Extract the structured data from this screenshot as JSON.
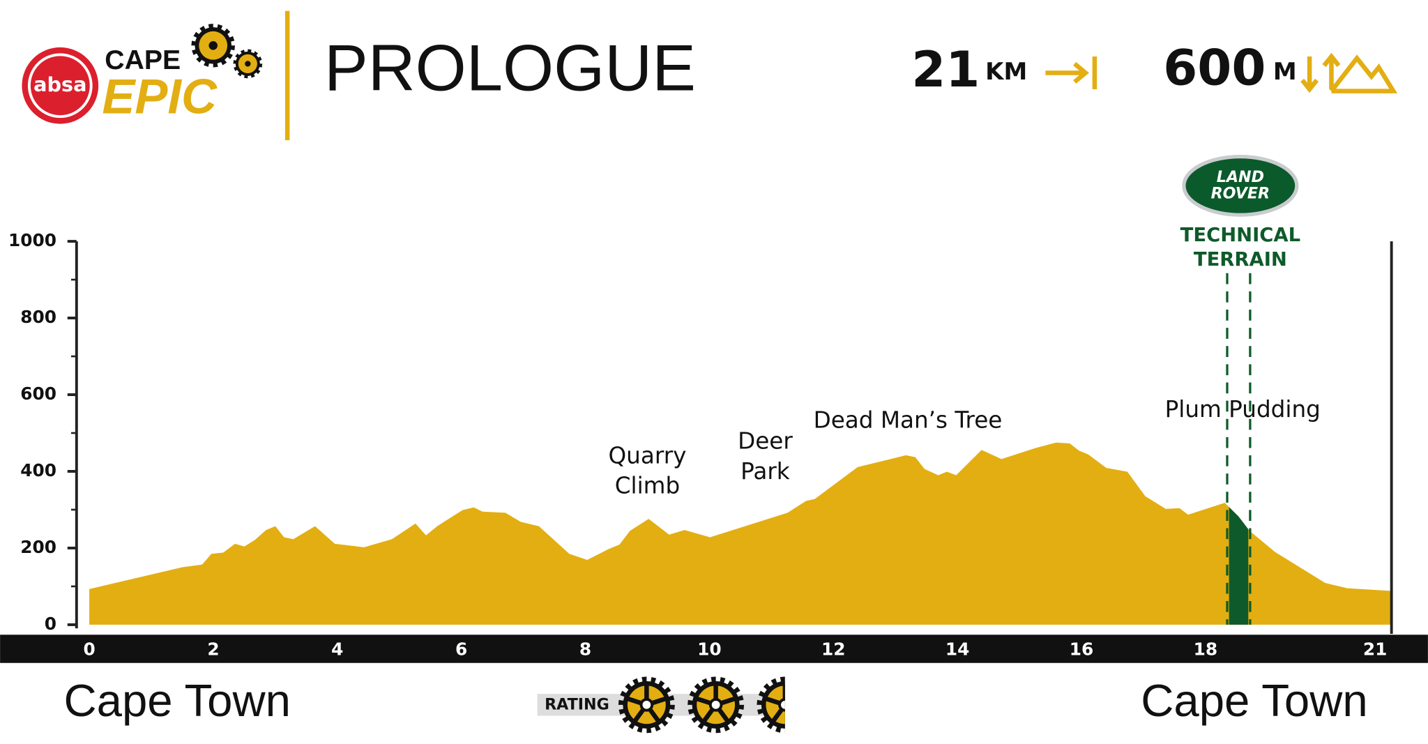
{
  "chart_data": {
    "type": "area",
    "title": "PROLOGUE",
    "brand": {
      "sponsor": "absa",
      "line1": "CAPE",
      "line2": "EPIC"
    },
    "distance": {
      "value": 21,
      "unit": "KM"
    },
    "climbing": {
      "value": 600,
      "unit": "M"
    },
    "start": "Cape Town",
    "finish": "Cape Town",
    "rating": {
      "label": "RATING",
      "value": 2.5
    },
    "x": [
      0,
      1.5,
      1.82,
      1.97,
      2.16,
      2.35,
      2.5,
      2.67,
      2.85,
      3.0,
      3.14,
      3.29,
      3.64,
      3.96,
      4.43,
      4.88,
      5.26,
      5.43,
      5.61,
      6.02,
      6.2,
      6.34,
      6.71,
      6.96,
      7.25,
      7.74,
      8.03,
      8.37,
      8.55,
      8.72,
      9.02,
      9.35,
      9.6,
      10.01,
      11.26,
      11.56,
      11.7,
      12.39,
      13.17,
      13.32,
      13.47,
      13.69,
      13.83,
      13.98,
      14.39,
      14.71,
      15.26,
      15.59,
      15.81,
      15.96,
      16.11,
      16.4,
      16.74,
      17.03,
      17.36,
      17.58,
      17.72,
      18.31,
      18.53,
      18.71,
      19.12,
      19.93,
      20.29,
      21
    ],
    "series": [
      {
        "color": "#e3ae12",
        "values": [
          93,
          150,
          157,
          185,
          188,
          211,
          204,
          221,
          247,
          257,
          228,
          223,
          257,
          211,
          202,
          223,
          264,
          233,
          257,
          299,
          306,
          295,
          292,
          268,
          257,
          185,
          169,
          197,
          209,
          245,
          276,
          235,
          247,
          228,
          292,
          323,
          328,
          411,
          442,
          437,
          406,
          390,
          399,
          390,
          456,
          432,
          461,
          475,
          473,
          454,
          444,
          409,
          399,
          335,
          302,
          304,
          287,
          318,
          283,
          245,
          190,
          109,
          95,
          88
        ]
      }
    ],
    "xlim": [
      0,
      21
    ],
    "xticks": [
      0,
      2,
      4,
      6,
      8,
      10,
      12,
      14,
      16,
      18,
      21
    ],
    "ylim": [
      0,
      1000
    ],
    "yticks": [
      0,
      200,
      400,
      600,
      800,
      1000
    ],
    "yminorticks": [
      100,
      300,
      500,
      700,
      900
    ],
    "annotations": [
      {
        "text": [
          "Quarry",
          "Climb"
        ],
        "x": 9.0
      },
      {
        "text": [
          "Deer",
          "Park"
        ],
        "x": 10.9
      },
      {
        "text": [
          "Dead Man’s Tree"
        ],
        "x": 13.2
      },
      {
        "text": [
          "Plum Pudding"
        ],
        "x": 18.6
      }
    ],
    "highlight": {
      "sponsor": [
        "LAND",
        "ROVER"
      ],
      "label": [
        "TECHNICAL",
        "TERRAIN"
      ],
      "range": [
        18.35,
        18.72
      ],
      "color": "#0f5a2a"
    }
  }
}
